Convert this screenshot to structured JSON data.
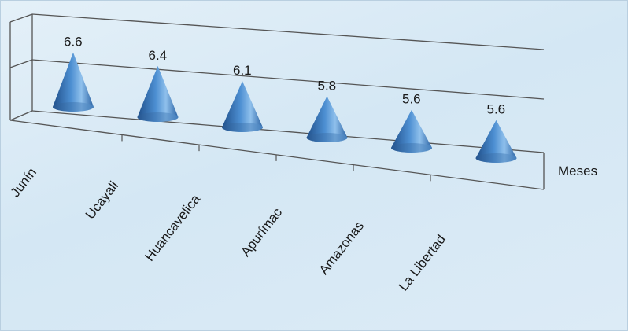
{
  "chart_data": {
    "type": "bar",
    "bar_shape": "cone",
    "categories": [
      "Junín",
      "Ucayali",
      "Huancavelica",
      "Apurímac",
      "Amazonas",
      "La Libertad"
    ],
    "values": [
      6.6,
      6.4,
      6.1,
      5.8,
      5.6,
      5.6
    ],
    "data_labels": [
      "6.6",
      "6.4",
      "6.1",
      "5.8",
      "5.6",
      "5.6"
    ],
    "xlabel": "",
    "ylabel": "Meses",
    "grid": true,
    "legend": "none",
    "colors": {
      "cone_dark": "#1f4f8a",
      "cone_mid": "#3f7fc4",
      "cone_light": "#8fc0ec",
      "grid": "#555555"
    }
  }
}
